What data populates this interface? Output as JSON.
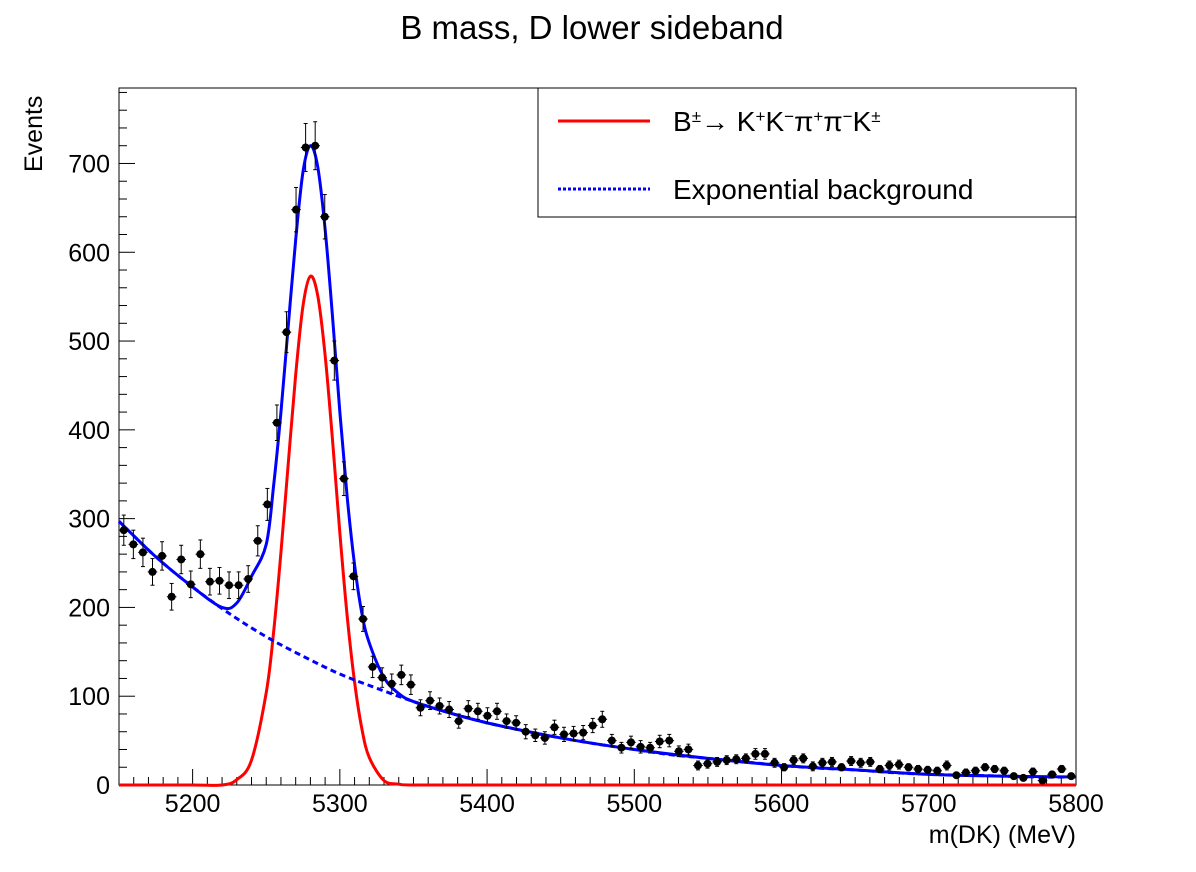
{
  "chart_data": {
    "type": "scatter",
    "title": "B mass, D lower sideband",
    "xlabel": "m(DK) (MeV)",
    "ylabel": "Events",
    "xlim": [
      5150,
      5800
    ],
    "ylim": [
      0,
      785
    ],
    "grid": false,
    "legend_placement": "top-right",
    "x_ticks": [
      5200,
      5300,
      5400,
      5500,
      5600,
      5700,
      5800
    ],
    "y_ticks": [
      0,
      100,
      200,
      300,
      400,
      500,
      600,
      700
    ],
    "x_tick_labels": [
      "5200",
      "5300",
      "5400",
      "5500",
      "5600",
      "5700",
      "5800"
    ],
    "y_tick_labels": [
      "0",
      "100",
      "200",
      "300",
      "400",
      "500",
      "600",
      "700"
    ],
    "series": [
      {
        "type": "points_with_errors",
        "color": "#000000",
        "bin_width": 6.5,
        "x": [
          5153.25,
          5159.75,
          5166.25,
          5172.75,
          5179.25,
          5185.75,
          5192.25,
          5198.75,
          5205.25,
          5211.75,
          5218.25,
          5224.75,
          5231.25,
          5237.75,
          5244.25,
          5250.75,
          5257.25,
          5263.75,
          5270.25,
          5276.75,
          5283.25,
          5289.75,
          5296.25,
          5302.75,
          5309.25,
          5315.75,
          5322.25,
          5328.75,
          5335.25,
          5341.75,
          5348.25,
          5354.75,
          5361.25,
          5367.75,
          5374.25,
          5380.75,
          5387.25,
          5393.75,
          5400.25,
          5406.75,
          5413.25,
          5419.75,
          5426.25,
          5432.75,
          5439.25,
          5445.75,
          5452.25,
          5458.75,
          5465.25,
          5471.75,
          5478.25,
          5484.75,
          5491.25,
          5497.75,
          5504.25,
          5510.75,
          5517.25,
          5523.75,
          5530.25,
          5536.75,
          5543.25,
          5549.75,
          5556.25,
          5562.75,
          5569.25,
          5575.75,
          5582.25,
          5588.75,
          5595.25,
          5601.75,
          5608.25,
          5614.75,
          5621.25,
          5627.75,
          5634.25,
          5640.75,
          5647.25,
          5653.75,
          5660.25,
          5666.75,
          5673.25,
          5679.75,
          5686.25,
          5692.75,
          5699.25,
          5705.75,
          5712.25,
          5718.75,
          5725.25,
          5731.75,
          5738.25,
          5744.75,
          5751.25,
          5757.75,
          5764.25,
          5770.75,
          5777.25,
          5783.75,
          5790.25,
          5796.75
        ],
        "y": [
          287,
          271,
          262,
          240,
          258,
          212,
          254,
          226,
          260,
          229,
          230,
          225,
          225,
          232,
          275,
          316,
          408,
          510,
          648,
          718,
          720,
          640,
          478,
          345,
          235,
          187,
          133,
          121,
          114,
          124,
          113,
          87,
          95,
          89,
          85,
          72,
          86,
          83,
          78,
          83,
          72,
          70,
          60,
          56,
          53,
          65,
          57,
          58,
          59,
          67,
          74,
          50,
          42,
          48,
          43,
          42,
          49,
          50,
          38,
          40,
          22,
          24,
          26,
          28,
          29,
          30,
          35,
          35,
          25,
          20,
          28,
          30,
          21,
          25,
          26,
          20,
          27,
          25,
          26,
          18,
          22,
          23,
          20,
          18,
          17,
          16,
          22,
          11,
          14,
          16,
          20,
          18,
          16,
          10,
          8,
          15,
          5,
          12,
          18,
          10
        ],
        "errors": [
          17,
          16,
          16,
          15,
          16,
          15,
          16,
          15,
          16,
          15,
          15,
          15,
          15,
          15,
          17,
          18,
          20,
          23,
          25,
          27,
          27,
          25,
          22,
          19,
          15,
          14,
          12,
          11,
          11,
          11,
          11,
          9,
          10,
          9,
          9,
          8,
          9,
          9,
          9,
          9,
          8,
          8,
          8,
          7,
          7,
          8,
          8,
          8,
          8,
          8,
          9,
          7,
          6,
          7,
          7,
          6,
          7,
          7,
          6,
          6,
          5,
          5,
          5,
          5,
          5,
          5,
          6,
          6,
          5,
          4,
          5,
          5,
          5,
          5,
          5,
          4,
          5,
          5,
          5,
          4,
          5,
          5,
          4,
          4,
          4,
          4,
          5,
          3,
          4,
          4,
          4,
          4,
          4,
          3,
          3,
          4,
          2,
          3,
          4,
          3
        ]
      },
      {
        "name": "B^{±}→ K^{+}K^{−}π^{+}π^{−}K^{±}",
        "type": "line",
        "color": "#ff0000",
        "style": "solid",
        "x": [
          5150,
          5200,
          5220,
          5230,
          5240,
          5250,
          5255,
          5260,
          5265,
          5270,
          5275,
          5280,
          5285,
          5290,
          5295,
          5300,
          5305,
          5310,
          5315,
          5320,
          5330,
          5340,
          5350,
          5400,
          5500,
          5600,
          5700,
          5800
        ],
        "y": [
          0,
          0,
          0,
          6,
          28,
          104,
          172,
          262,
          363,
          462,
          540,
          573,
          551,
          484,
          389,
          284,
          190,
          116,
          63,
          31,
          5,
          1,
          0,
          0,
          0,
          0,
          0,
          0
        ]
      },
      {
        "name": "Exponential background",
        "type": "line",
        "color": "#0000ff",
        "style": "dashed",
        "x": [
          5150,
          5175,
          5200,
          5225,
          5250,
          5275,
          5300,
          5325,
          5350,
          5375,
          5400,
          5425,
          5450,
          5475,
          5500,
          5525,
          5550,
          5575,
          5600,
          5625,
          5650,
          5675,
          5700,
          5725,
          5750,
          5775,
          5800
        ],
        "y": [
          297,
          257,
          223,
          193,
          167,
          145,
          125,
          109,
          94,
          81,
          70,
          61,
          53,
          46,
          40,
          34,
          30,
          26,
          22,
          19,
          17,
          14,
          12,
          11,
          10,
          9,
          9
        ]
      },
      {
        "name": "Total fit",
        "type": "line",
        "color": "#0000ff",
        "style": "solid",
        "x": [
          5150,
          5175,
          5200,
          5220,
          5230,
          5240,
          5250,
          5255,
          5260,
          5265,
          5270,
          5275,
          5280,
          5285,
          5290,
          5295,
          5300,
          5305,
          5310,
          5315,
          5320,
          5330,
          5340,
          5350,
          5375,
          5400,
          5450,
          5500,
          5550,
          5600,
          5650,
          5700,
          5750,
          5800
        ],
        "y": [
          297,
          257,
          223,
          200,
          205,
          235,
          271,
          337,
          420,
          518,
          614,
          691,
          720,
          696,
          626,
          528,
          420,
          324,
          248,
          193,
          160,
          121,
          103,
          94,
          81,
          70,
          53,
          40,
          30,
          22,
          17,
          12,
          10,
          9
        ]
      }
    ]
  },
  "legend": {
    "entries": [
      {
        "label": "B^{±}→ K^{+}K^{−}π^{+}π^{−}K^{±}",
        "color": "#ff0000",
        "style": "solid"
      },
      {
        "label": "Exponential background",
        "color": "#0000ff",
        "style": "dashed"
      }
    ]
  }
}
